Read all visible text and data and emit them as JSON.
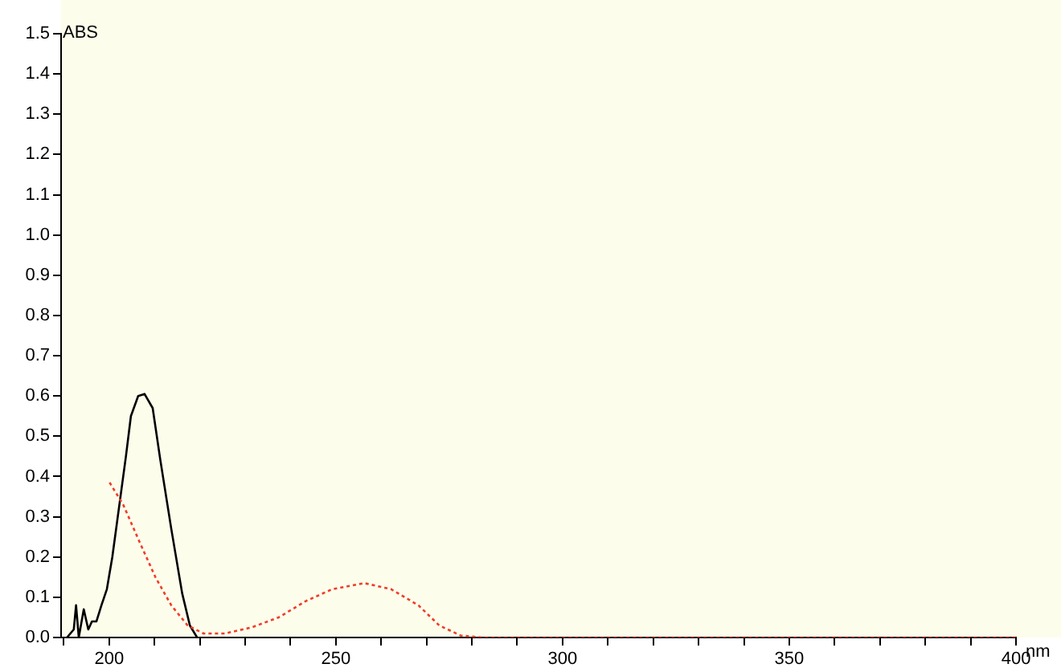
{
  "chart_data": {
    "type": "line",
    "xlabel": "nm",
    "ylabel": "ABS",
    "xlim": [
      189.4,
      400
    ],
    "ylim": [
      0,
      1.5
    ],
    "xticks": [
      {
        "value": 190,
        "label": null
      },
      200,
      {
        "value": 210,
        "label": null
      },
      {
        "value": 220,
        "label": null
      },
      {
        "value": 230,
        "label": null
      },
      {
        "value": 240,
        "label": null
      },
      250,
      {
        "value": 260,
        "label": null
      },
      {
        "value": 270,
        "label": null
      },
      {
        "value": 280,
        "label": null
      },
      {
        "value": 290,
        "label": null
      },
      300,
      {
        "value": 310,
        "label": null
      },
      {
        "value": 320,
        "label": null
      },
      {
        "value": 330,
        "label": null
      },
      {
        "value": 340,
        "label": null
      },
      350,
      {
        "value": 360,
        "label": null
      },
      {
        "value": 370,
        "label": null
      },
      {
        "value": 380,
        "label": null
      },
      {
        "value": 390,
        "label": null
      },
      400
    ],
    "yticks": [
      {
        "value": 0,
        "label": "0.0"
      },
      {
        "value": 0.1,
        "label": "0.1"
      },
      {
        "value": 0.2,
        "label": "0.2"
      },
      {
        "value": 0.3,
        "label": "0.3"
      },
      {
        "value": 0.4,
        "label": "0.4"
      },
      {
        "value": 0.5,
        "label": "0.5"
      },
      {
        "value": 0.6,
        "label": "0.6"
      },
      {
        "value": 0.7,
        "label": "0.7"
      },
      {
        "value": 0.8,
        "label": "0.8"
      },
      {
        "value": 0.9,
        "label": "0.9"
      },
      {
        "value": 1,
        "label": "1.0"
      },
      {
        "value": 1.1,
        "label": "1.1"
      },
      {
        "value": 1.2,
        "label": "1.2"
      },
      {
        "value": 1.3,
        "label": "1.3"
      },
      {
        "value": 1.4,
        "label": "1.4"
      },
      {
        "value": 1.5,
        "label": "1.5"
      }
    ],
    "grid": false,
    "legend": false,
    "marker": "none",
    "series": [
      {
        "color": "#000000",
        "line_style": "solid",
        "x": [
          190.7,
          192.2,
          192.7,
          193.3,
          194.4,
          195.4,
          196.2,
          197.2,
          198.3,
          199.5,
          200.7,
          201.9,
          203.7,
          204.8,
          206.4,
          207.8,
          209.6,
          211.3,
          213.7,
          216.1,
          217.8,
          219.4
        ],
        "values": [
          0,
          0.02,
          0.08,
          0,
          0.07,
          0.02,
          0.04,
          0.04,
          0.08,
          0.12,
          0.2,
          0.3,
          0.45,
          0.55,
          0.6,
          0.605,
          0.57,
          0.44,
          0.27,
          0.11,
          0.03,
          0
        ]
      },
      {
        "color": "#f03c28",
        "line_style": "dotted",
        "x": [
          200.1,
          203.1,
          206.6,
          210.2,
          213.7,
          217.3,
          220.8,
          225.5,
          231.4,
          237.4,
          243.3,
          249.2,
          256.3,
          262.2,
          268.2,
          272.8,
          277.5,
          282.3,
          300,
          350,
          400
        ],
        "values": [
          0.385,
          0.33,
          0.24,
          0.15,
          0.08,
          0.03,
          0.01,
          0.01,
          0.025,
          0.05,
          0.09,
          0.12,
          0.135,
          0.12,
          0.08,
          0.03,
          0.005,
          0,
          0,
          0,
          0
        ]
      }
    ]
  }
}
